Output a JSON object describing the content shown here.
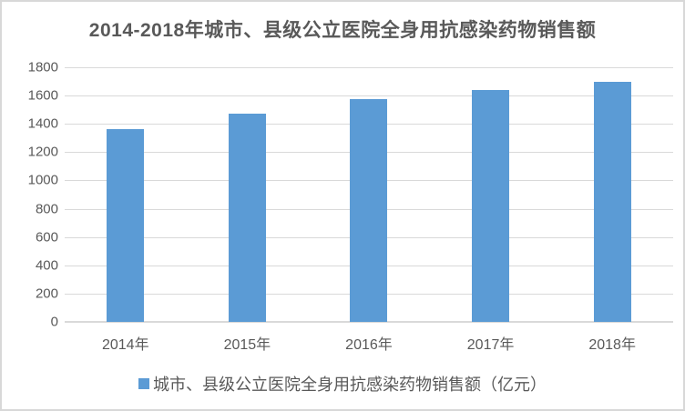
{
  "chart_data": {
    "type": "bar",
    "title": "2014-2018年城市、县级公立医院全身用抗感染药物销售额",
    "categories": [
      "2014年",
      "2015年",
      "2016年",
      "2017年",
      "2018年"
    ],
    "values": [
      1360,
      1472,
      1574,
      1638,
      1698
    ],
    "legend": "城市、县级公立医院全身用抗感染药物销售额（亿元）",
    "xlabel": "",
    "ylabel": "",
    "unit": "亿元",
    "ylim": [
      0,
      1800
    ],
    "yticks": [
      0,
      200,
      400,
      600,
      800,
      1000,
      1200,
      1400,
      1600,
      1800
    ],
    "grid": true,
    "legend_position": "bottom",
    "bar_color": "#5B9BD5",
    "text_color": "#595959",
    "gridline_color": "#D9D9D9"
  }
}
